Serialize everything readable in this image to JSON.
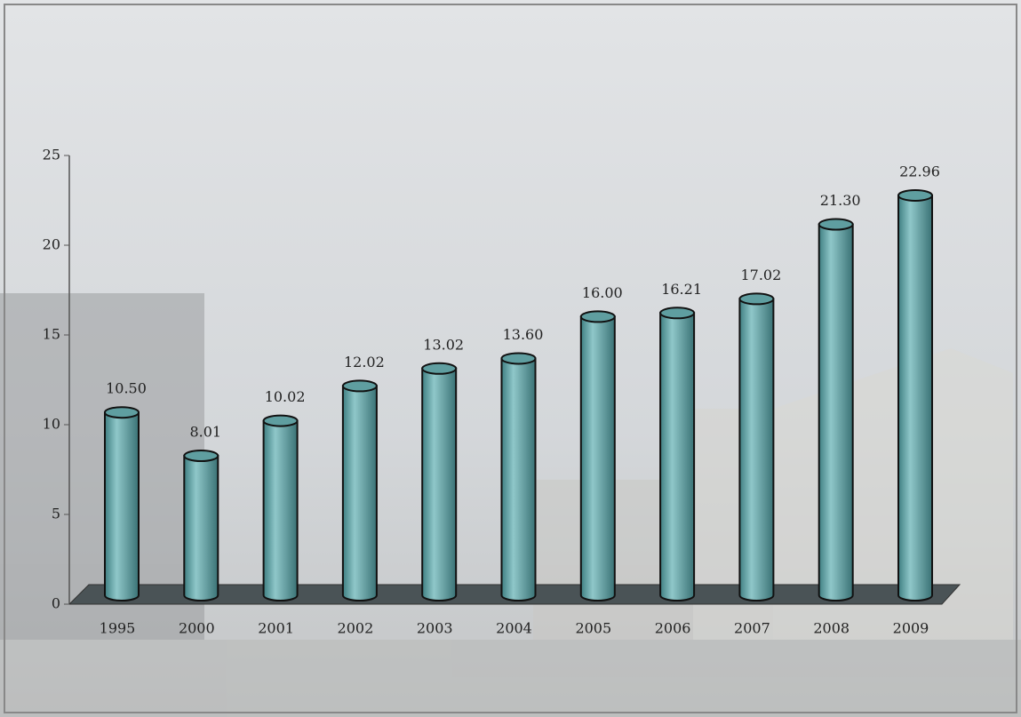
{
  "chart_data": {
    "type": "bar",
    "categories": [
      "1995",
      "2000",
      "2001",
      "2002",
      "2003",
      "2004",
      "2005",
      "2006",
      "2007",
      "2008",
      "2009"
    ],
    "values": [
      10.5,
      8.01,
      10.02,
      12.02,
      13.02,
      13.6,
      16.0,
      16.21,
      17.02,
      21.3,
      22.96
    ],
    "value_labels": [
      "10.50",
      "8.01",
      "10.02",
      "12.02",
      "13.02",
      "13.60",
      "16.00",
      "16.21",
      "17.02",
      "21.30",
      "22.96"
    ],
    "color": "#5f9ea0",
    "ylim": [
      0,
      25
    ],
    "yticks": [
      0,
      5,
      10,
      15,
      20,
      25
    ],
    "grid": false
  }
}
